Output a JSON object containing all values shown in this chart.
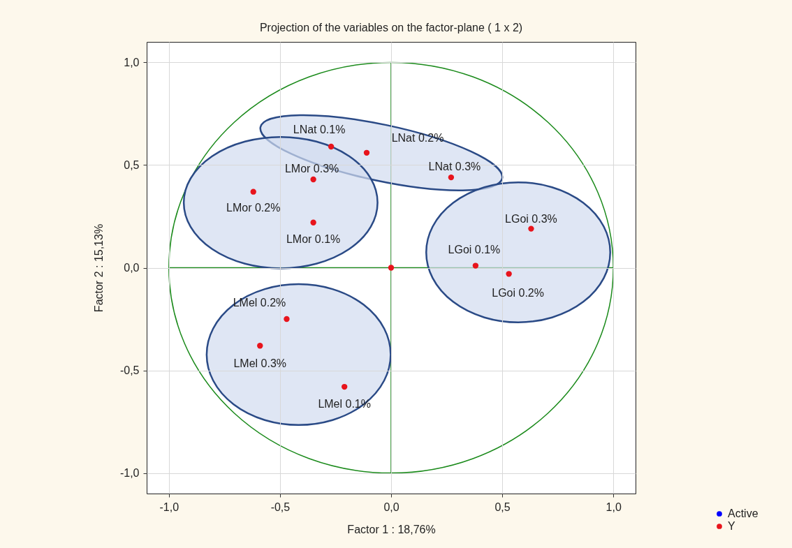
{
  "chart_data": {
    "type": "scatter",
    "title": "Projection of the variables on the factor-plane ( 1 x 2)",
    "xlabel": "Factor 1 : 18,76%",
    "ylabel": "Factor 2 : 15,13%",
    "xlim": [
      -1.1,
      1.1
    ],
    "ylim": [
      -1.1,
      1.1
    ],
    "xticks": [
      {
        "value": -1,
        "label": "-1,0"
      },
      {
        "value": -0.5,
        "label": "-0,5"
      },
      {
        "value": 0,
        "label": "0,0"
      },
      {
        "value": 0.5,
        "label": "0,5"
      },
      {
        "value": 1,
        "label": "1,0"
      }
    ],
    "yticks": [
      {
        "value": -1,
        "label": "-1,0"
      },
      {
        "value": -0.5,
        "label": "-0,5"
      },
      {
        "value": 0,
        "label": "0,0"
      },
      {
        "value": 0.5,
        "label": "0,5"
      },
      {
        "value": 1,
        "label": "1,0"
      }
    ],
    "grid": true,
    "legend": "bottom right",
    "marker": "circle",
    "series": [
      {
        "name": "Active",
        "color": "#0000ff"
      },
      {
        "name": "Y",
        "color": "#e8141c",
        "x": [
          -0.27,
          -0.11,
          0.27,
          -0.35,
          -0.62,
          -0.35,
          0.63,
          0.38,
          0.53,
          -0.47,
          -0.59,
          -0.21,
          0
        ],
        "values": [
          0.59,
          0.56,
          0.44,
          0.43,
          0.37,
          0.22,
          0.19,
          0.01,
          -0.03,
          -0.25,
          -0.38,
          -0.58,
          0
        ]
      }
    ],
    "annotations": [
      {
        "text": "LNat 0.1%",
        "x": -0.27,
        "y": 0.59
      },
      {
        "text": "LNat 0.2%",
        "x": -0.11,
        "y": 0.56
      },
      {
        "text": "LNat 0.3%",
        "x": 0.27,
        "y": 0.44
      },
      {
        "text": "LMor 0.3%",
        "x": -0.35,
        "y": 0.43
      },
      {
        "text": "LMor 0.2%",
        "x": -0.62,
        "y": 0.37
      },
      {
        "text": "LMor 0.1%",
        "x": -0.35,
        "y": 0.22
      },
      {
        "text": "LGoi 0.3%",
        "x": 0.63,
        "y": 0.19
      },
      {
        "text": "LGoi 0.1%",
        "x": 0.38,
        "y": 0.01
      },
      {
        "text": "LGoi 0.2%",
        "x": 0.53,
        "y": -0.03
      },
      {
        "text": "LMel 0.2%",
        "x": -0.47,
        "y": -0.25
      },
      {
        "text": "LMel 0.3%",
        "x": -0.59,
        "y": -0.38
      },
      {
        "text": "LMel 0.1%",
        "x": -0.21,
        "y": -0.58
      }
    ]
  }
}
